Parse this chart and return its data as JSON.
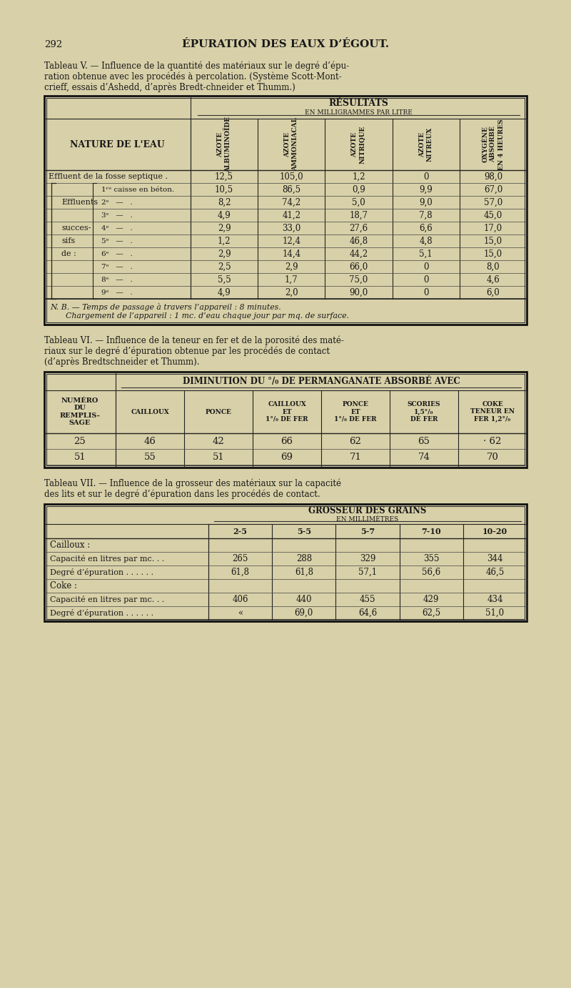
{
  "page_num": "292",
  "page_title": "ÉPURATION DES EAUX D’ÉGOUT.",
  "bg_color": "#d8d0a8",
  "text_color": "#1a1a1a",
  "tab5_title_line1": "Tableau V. — Influence de la quantité des matériaux sur le degré d’épu-",
  "tab5_title_line2": "ration obtenue avec les procédés à percolation. (Système Scott-Mont-",
  "tab5_title_line3": "crieff, essais d’Ashedd, d’après Bredt-chneider et Thumm.)",
  "tab5_subcols": [
    "AZOTE\nALBUMINOÏDE",
    "AZOTE\nAMMONIACAL",
    "AZOTE\nNITRIQUE",
    "AZOTE\nNITREUX",
    "OXYGÈNE\nABSORBÉ\nEN 4 HEURES"
  ],
  "tab5_rows": [
    {
      "vals": [
        "12,5",
        "105,0",
        "1,2",
        "0",
        "98,0"
      ]
    },
    {
      "vals": [
        "10,5",
        "86,5",
        "0,9",
        "9,9",
        "67,0"
      ]
    },
    {
      "vals": [
        "8,2",
        "74,2",
        "5,0",
        "9,0",
        "57,0"
      ]
    },
    {
      "vals": [
        "4,9",
        "41,2",
        "18,7",
        "7,8",
        "45,0"
      ]
    },
    {
      "vals": [
        "2,9",
        "33,0",
        "27,6",
        "6,6",
        "17,0"
      ]
    },
    {
      "vals": [
        "1,2",
        "12,4",
        "46,8",
        "4,8",
        "15,0"
      ]
    },
    {
      "vals": [
        "2,9",
        "14,4",
        "44,2",
        "5,1",
        "15,0"
      ]
    },
    {
      "vals": [
        "2,5",
        "2,9",
        "66,0",
        "0",
        "8,0"
      ]
    },
    {
      "vals": [
        "5,5",
        "1,7",
        "75,0",
        "0",
        "4,6"
      ]
    },
    {
      "vals": [
        "4,9",
        "2,0",
        "90,0",
        "0",
        "6,0"
      ]
    }
  ],
  "tab5_note_line1": "N. B. — Temps de passage à travers l’appareil : 8 minutes.",
  "tab5_note_line2": "Chargement de l’appareil : 1 mc. d’eau chaque jour par mq. de surface.",
  "tab6_title_line1": "Tableau VI. — Influence de la teneur en fer et de la porosité des maté-",
  "tab6_title_line2": "riaux sur le degré d’épuration obtenue par les procédés de contact",
  "tab6_title_line3": "(d’après Bredtschneider et Thumm).",
  "tab6_subcols": [
    "CAILLOUX",
    "PONCE",
    "CAILLOUX\nET\n1°/₀ DE FER",
    "PONCE\nET\n1°/₀ DE FER",
    "SCORIES\n1,5°/₀\nDE FER",
    "COKE\nTENEUR EN\nFER 1,2°/₀"
  ],
  "tab6_rows": [
    {
      "num": "25",
      "vals": [
        "46",
        "42",
        "66",
        "62",
        "65",
        "· 62"
      ]
    },
    {
      "num": "51",
      "vals": [
        "55",
        "51",
        "69",
        "71",
        "74",
        "70"
      ]
    }
  ],
  "tab7_title_line1": "Tableau VII. — Influence de la grosseur des matériaux sur la capacité",
  "tab7_title_line2": "des lits et sur le degré d’épuration dans les procédés de contact.",
  "tab7_subcols": [
    "2-5",
    "5-5",
    "5-7",
    "7-10",
    "10-20"
  ],
  "tab7_rows": [
    {
      "label": "Cailloux :",
      "vals": [
        "",
        "",
        "",
        "",
        ""
      ],
      "bold": true
    },
    {
      "label": "Capacité en litres par mc. . .",
      "vals": [
        "265",
        "288",
        "329",
        "355",
        "344"
      ],
      "bold": false
    },
    {
      "label": "Degré d’épuration . . . . . .",
      "vals": [
        "61,8",
        "61,8",
        "57,1",
        "56,6",
        "46,5"
      ],
      "bold": false
    },
    {
      "label": "Coke :",
      "vals": [
        "",
        "",
        "",
        "",
        ""
      ],
      "bold": true
    },
    {
      "label": "Capacité en litres par mc. . .",
      "vals": [
        "406",
        "440",
        "455",
        "429",
        "434"
      ],
      "bold": false
    },
    {
      "label": "Degré d’épuration . . . . . .",
      "vals": [
        "«",
        "69,0",
        "64,6",
        "62,5",
        "51,0"
      ],
      "bold": false
    }
  ]
}
